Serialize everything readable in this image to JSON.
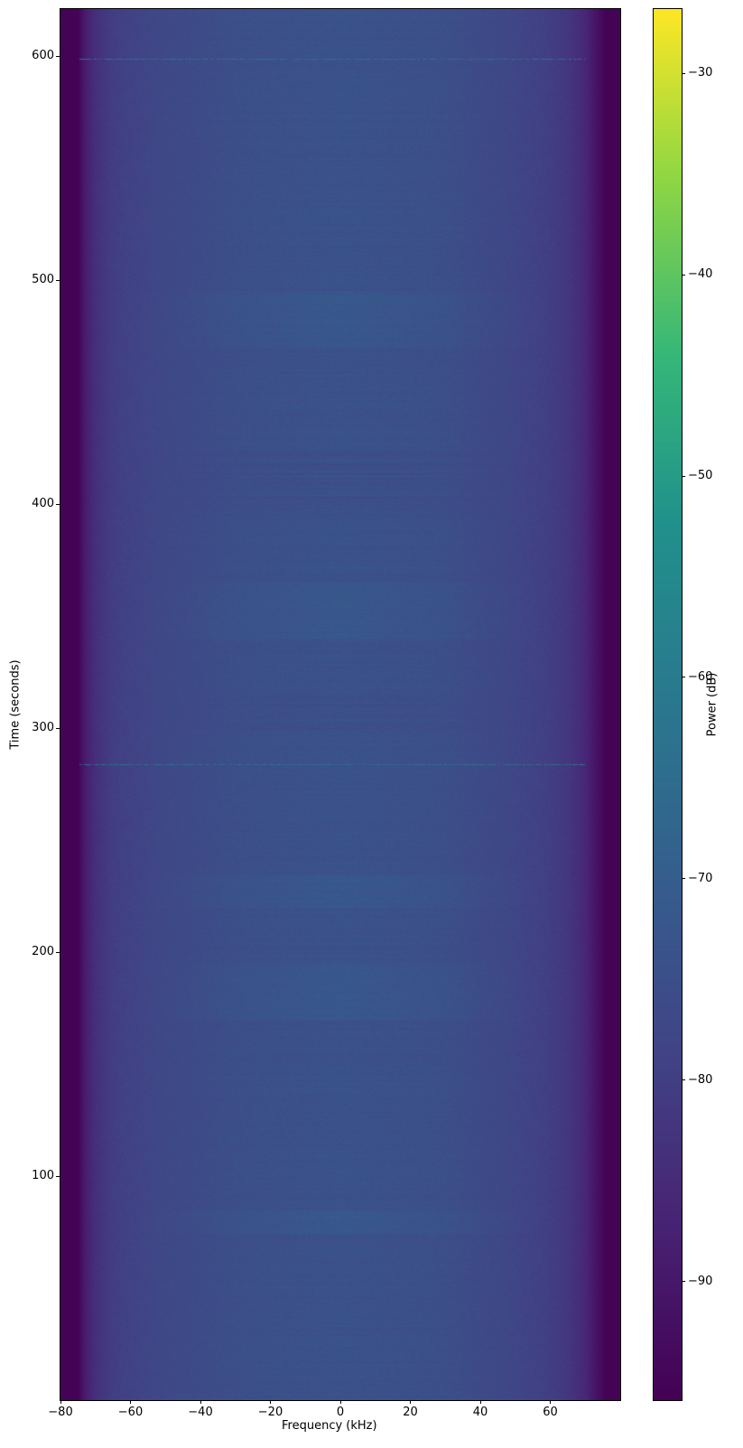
{
  "chart_data": {
    "type": "heatmap",
    "subtype": "spectrogram",
    "title": "",
    "xlabel": "Frequency (kHz)",
    "ylabel": "Time (seconds)",
    "xlim": [
      -80,
      80
    ],
    "ylim": [
      0,
      621
    ],
    "xticks": [
      "−80",
      "−60",
      "−40",
      "−20",
      "0",
      "20",
      "40",
      "60"
    ],
    "xtick_values": [
      -80,
      -60,
      -40,
      -20,
      0,
      20,
      40,
      60
    ],
    "yticks": [
      "100",
      "200",
      "300",
      "400",
      "500",
      "600"
    ],
    "ytick_values": [
      100,
      200,
      300,
      400,
      500,
      600
    ],
    "colormap": "viridis",
    "colorbar": {
      "label": "Power (dB)",
      "range": [
        -95.9,
        -26.8
      ],
      "ticks": [
        "−90",
        "−80",
        "−70",
        "−60",
        "−50",
        "−40",
        "−30"
      ],
      "tick_values": [
        -90,
        -80,
        -70,
        -60,
        -50,
        -40,
        -30
      ]
    },
    "mean_power_profile": {
      "frequency_khz": [
        -80,
        -75,
        -73,
        -70,
        -65,
        -50,
        -30,
        0,
        30,
        45,
        60,
        65,
        70,
        73,
        76,
        80
      ],
      "power_db": [
        -95.5,
        -95.5,
        -89,
        -84,
        -80,
        -77,
        -75,
        -74,
        -75,
        -77,
        -80,
        -82,
        -86,
        -91,
        -95.5,
        -95.5
      ]
    },
    "brighter_time_bands_seconds": [
      [
        470,
        495
      ],
      [
        340,
        365
      ],
      [
        220,
        235
      ],
      [
        170,
        195
      ],
      [
        75,
        85
      ]
    ],
    "darker_time_bands_seconds": [
      [
        395,
        425
      ],
      [
        300,
        315
      ]
    ],
    "impulse_lines_seconds": [
      599,
      284
    ]
  }
}
